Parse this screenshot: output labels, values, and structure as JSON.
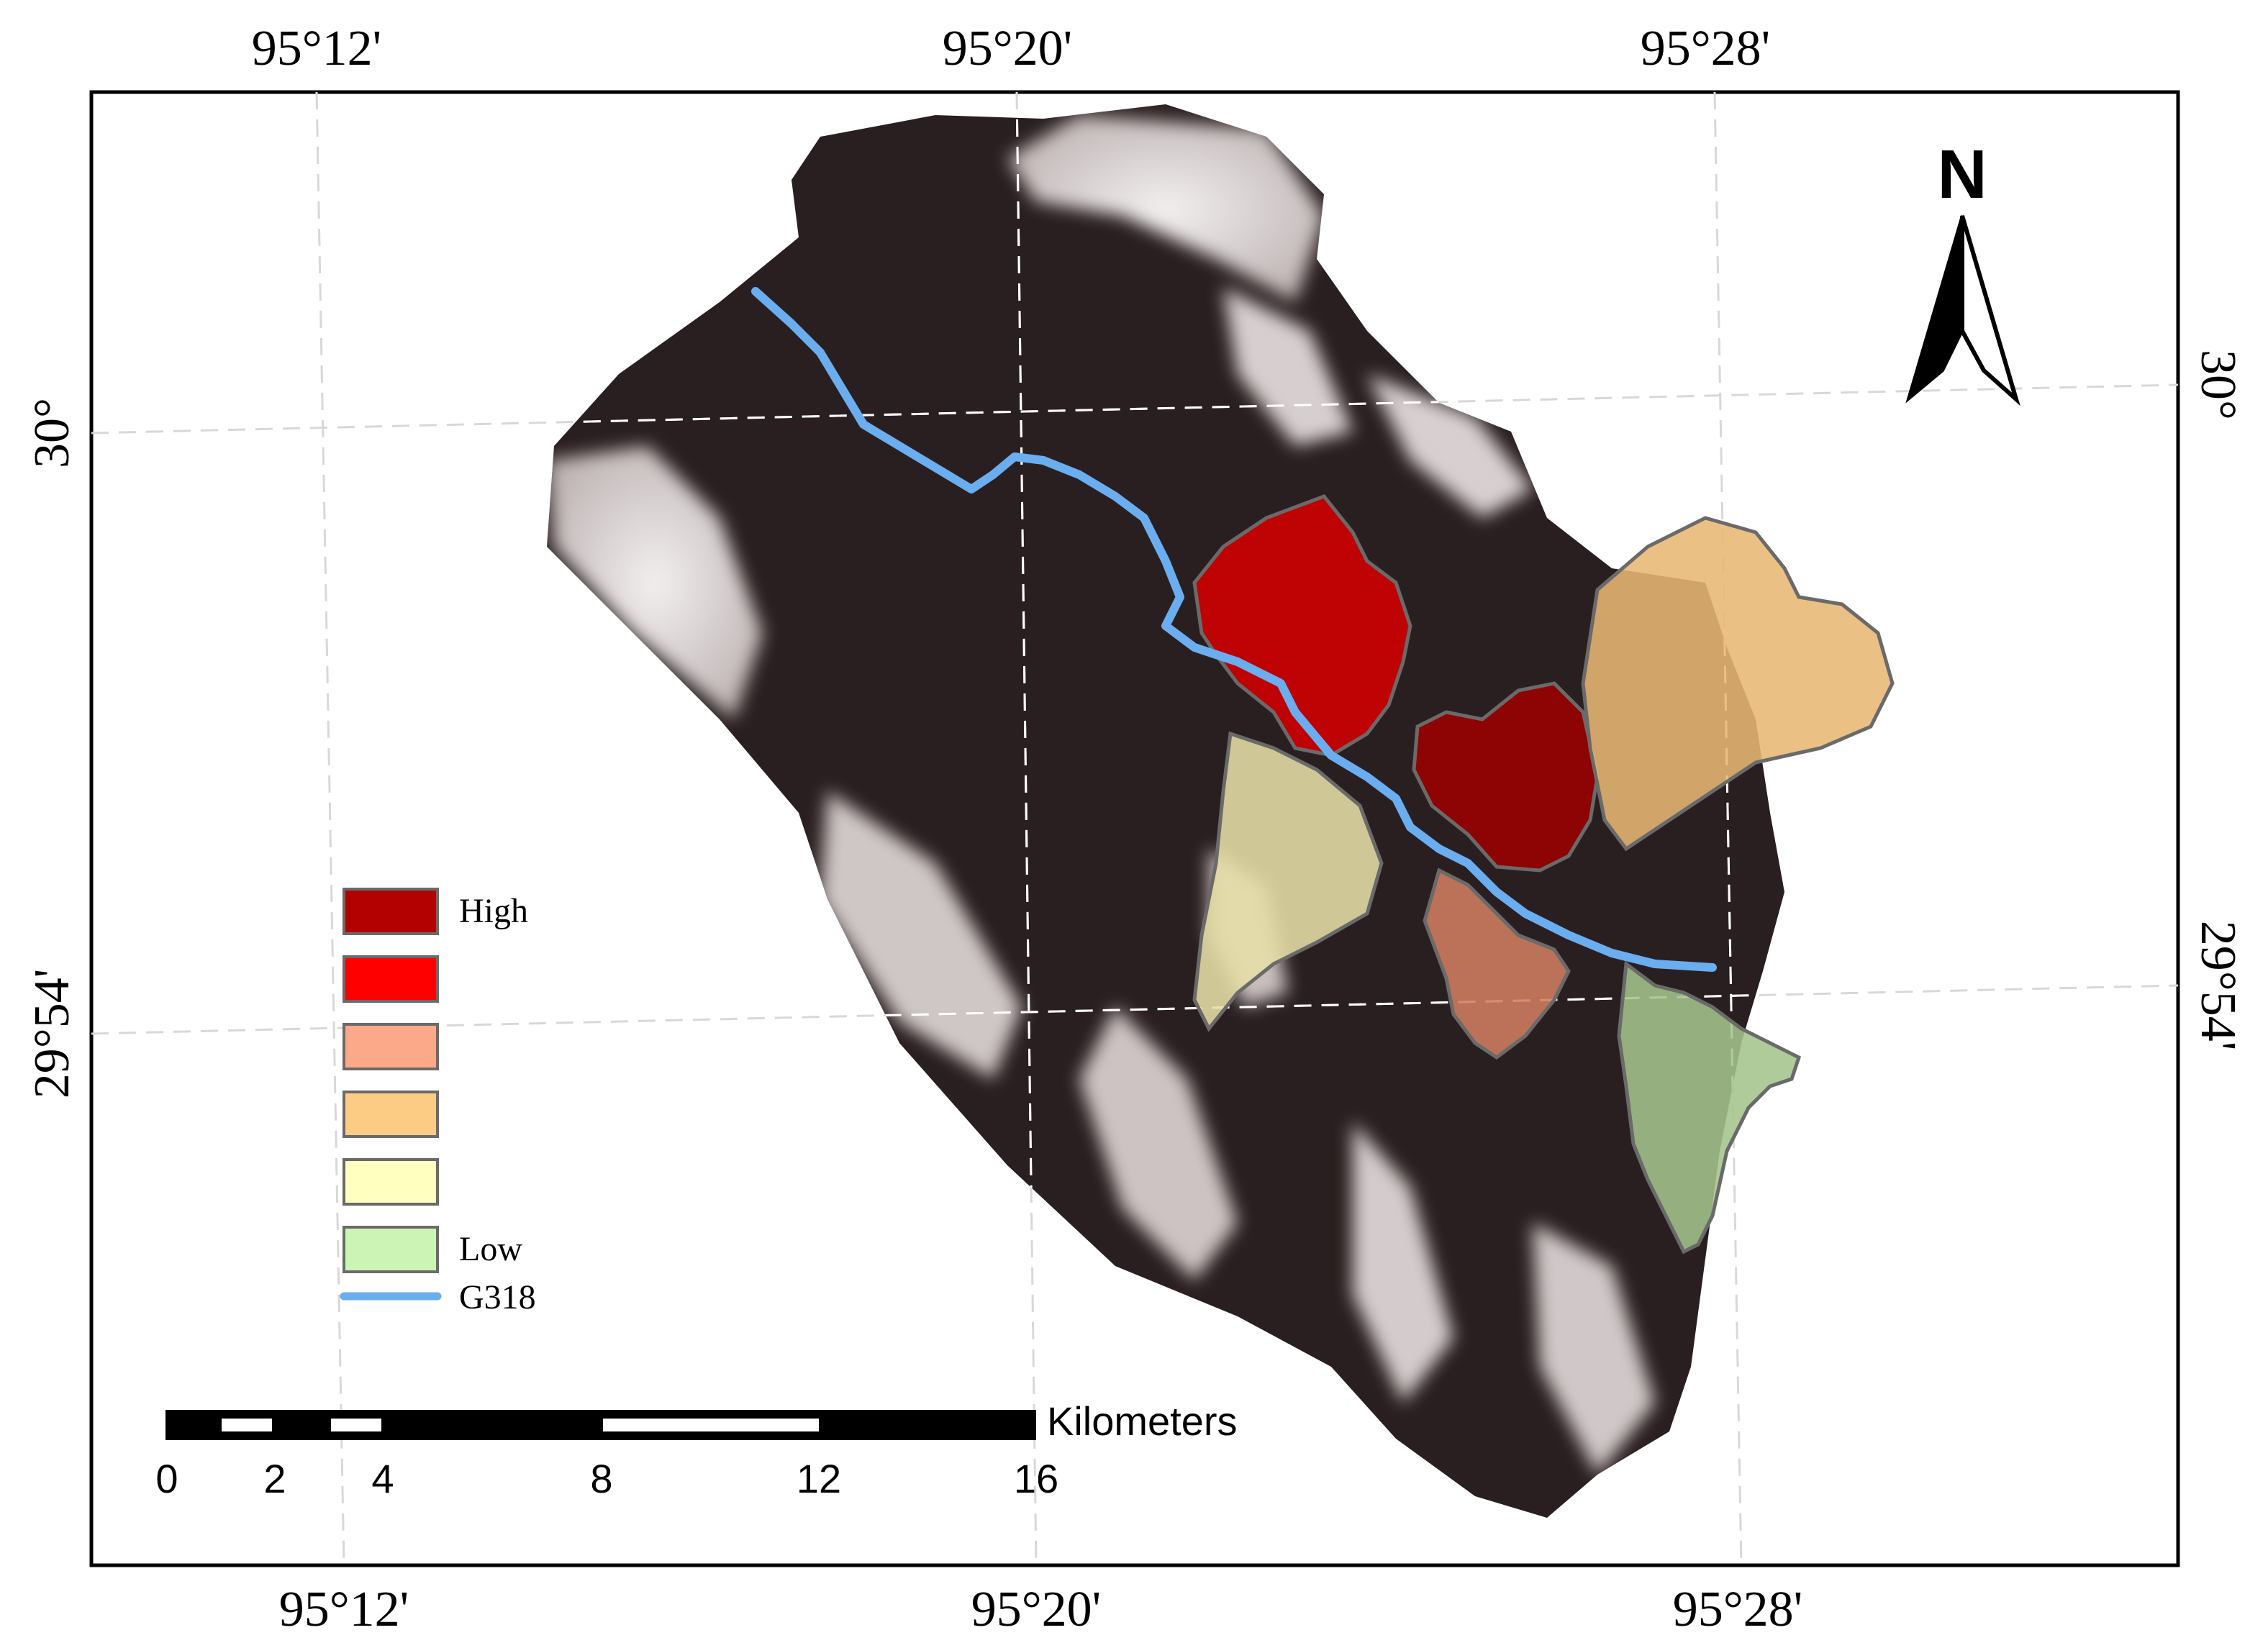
{
  "coordinates": {
    "top": [
      "95°12'",
      "95°20'",
      "95°28'"
    ],
    "bottom": [
      "95°12'",
      "95°20'",
      "95°28'"
    ],
    "left": [
      "30°",
      "29°54'"
    ],
    "right": [
      "30°",
      "29°54'"
    ]
  },
  "north_arrow": {
    "label": "N"
  },
  "legend": {
    "items": [
      {
        "label": "High",
        "color": "#b30000"
      },
      {
        "label": "",
        "color": "#ff0000"
      },
      {
        "label": "",
        "color": "#fca98a"
      },
      {
        "label": "",
        "color": "#fdcc84"
      },
      {
        "label": "",
        "color": "#ffffc0"
      },
      {
        "label": "Low",
        "color": "#ccf5b5"
      }
    ],
    "road": {
      "label": "G318",
      "color": "#6aaef0"
    }
  },
  "scale_bar": {
    "unit": "Kilometers",
    "ticks": [
      "0",
      "2",
      "4",
      "8",
      "12",
      "16"
    ]
  },
  "zones": [
    {
      "level": "red",
      "color": "#d40000"
    },
    {
      "level": "dark-red",
      "color": "#9c0000"
    },
    {
      "level": "orange",
      "color": "#e8b774"
    },
    {
      "level": "pale-yellow",
      "color": "#e6dfa6"
    },
    {
      "level": "salmon",
      "color": "#d07e60"
    },
    {
      "level": "green",
      "color": "#a4c48c"
    }
  ]
}
